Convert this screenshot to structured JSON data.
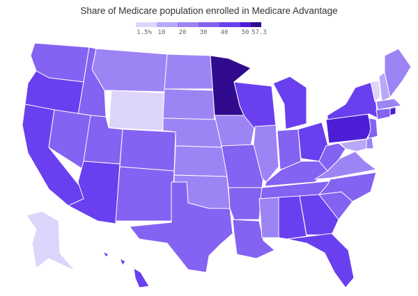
{
  "title": "Share of Medicare population enrolled in Medicare Advantage",
  "legend": {
    "ticks": [
      "1.5%",
      "10",
      "20",
      "30",
      "40",
      "50",
      "57.3"
    ],
    "colors": [
      "#ddd5fb",
      "#b9a8f7",
      "#9d84f5",
      "#8462f2",
      "#6a3fef",
      "#4d1ed6",
      "#300b8e"
    ]
  },
  "states": [
    {
      "id": "WA",
      "value": 38
    },
    {
      "id": "OR",
      "value": 46
    },
    {
      "id": "CA",
      "value": 44
    },
    {
      "id": "ID",
      "value": 36
    },
    {
      "id": "NV",
      "value": 34
    },
    {
      "id": "MT",
      "value": 27
    },
    {
      "id": "WY",
      "value": 8
    },
    {
      "id": "UT",
      "value": 37
    },
    {
      "id": "AZ",
      "value": 40
    },
    {
      "id": "CO",
      "value": 39
    },
    {
      "id": "NM",
      "value": 36
    },
    {
      "id": "ND",
      "value": 22
    },
    {
      "id": "SD",
      "value": 27
    },
    {
      "id": "NE",
      "value": 23
    },
    {
      "id": "KS",
      "value": 22
    },
    {
      "id": "OK",
      "value": 22
    },
    {
      "id": "TX",
      "value": 39
    },
    {
      "id": "MN",
      "value": 57.3
    },
    {
      "id": "IA",
      "value": 24
    },
    {
      "id": "MO",
      "value": 36
    },
    {
      "id": "AR",
      "value": 30
    },
    {
      "id": "LA",
      "value": 38
    },
    {
      "id": "WI",
      "value": 40
    },
    {
      "id": "IL",
      "value": 29
    },
    {
      "id": "MI",
      "value": 44
    },
    {
      "id": "IN",
      "value": 34
    },
    {
      "id": "OH",
      "value": 43
    },
    {
      "id": "KY",
      "value": 30
    },
    {
      "id": "TN",
      "value": 38
    },
    {
      "id": "MS",
      "value": 22
    },
    {
      "id": "AL",
      "value": 40
    },
    {
      "id": "GA",
      "value": 41
    },
    {
      "id": "FL",
      "value": 47
    },
    {
      "id": "SC",
      "value": 30
    },
    {
      "id": "NC",
      "value": 36
    },
    {
      "id": "VA",
      "value": 22
    },
    {
      "id": "WV",
      "value": 33
    },
    {
      "id": "PA",
      "value": 50
    },
    {
      "id": "NY",
      "value": 40
    },
    {
      "id": "VT",
      "value": 8
    },
    {
      "id": "NH",
      "value": 12
    },
    {
      "id": "ME",
      "value": 27
    },
    {
      "id": "MA",
      "value": 24
    },
    {
      "id": "RI",
      "value": 50
    },
    {
      "id": "CT",
      "value": 34
    },
    {
      "id": "NJ",
      "value": 31
    },
    {
      "id": "DE",
      "value": 22
    },
    {
      "id": "MD",
      "value": 12
    },
    {
      "id": "AK",
      "value": 1.5
    },
    {
      "id": "HI",
      "value": 46
    }
  ]
}
